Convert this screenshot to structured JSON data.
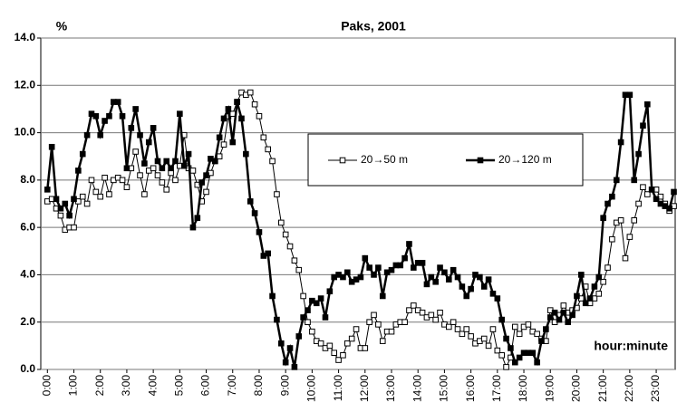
{
  "chart_data": {
    "type": "line",
    "title": "Paks, 2001",
    "y_label": "%",
    "x_label": "hour:minute",
    "x": [
      0,
      10,
      20,
      30,
      40,
      50,
      60,
      70,
      80,
      90,
      100,
      110,
      120,
      130,
      140,
      150,
      160,
      170,
      180,
      190,
      200,
      210,
      220,
      230,
      240,
      250,
      260,
      270,
      280,
      290,
      300,
      310,
      320,
      330,
      340,
      350,
      360,
      370,
      380,
      390,
      400,
      410,
      420,
      430,
      440,
      450,
      460,
      470,
      480,
      490,
      500,
      510,
      520,
      530,
      540,
      550,
      560,
      570,
      580,
      590,
      600,
      610,
      620,
      630,
      640,
      650,
      660,
      670,
      680,
      690,
      700,
      710,
      720,
      730,
      740,
      750,
      760,
      770,
      780,
      790,
      800,
      810,
      820,
      830,
      840,
      850,
      860,
      870,
      880,
      890,
      900,
      910,
      920,
      930,
      940,
      950,
      960,
      970,
      980,
      990,
      1000,
      1010,
      1020,
      1030,
      1040,
      1050,
      1060,
      1070,
      1080,
      1090,
      1100,
      1110,
      1120,
      1130,
      1140,
      1150,
      1160,
      1170,
      1180,
      1190,
      1200,
      1210,
      1220,
      1230,
      1240,
      1250,
      1260,
      1270,
      1280,
      1290,
      1300,
      1310,
      1320,
      1330,
      1340,
      1350,
      1360,
      1370,
      1380,
      1390,
      1400,
      1410,
      1420
    ],
    "series": [
      {
        "name": "20→50 m",
        "color": "#000000",
        "marker": "open",
        "values": [
          7.1,
          7.2,
          6.8,
          6.5,
          5.9,
          6.0,
          6.0,
          7.1,
          7.3,
          7.0,
          8.0,
          7.5,
          7.3,
          8.1,
          7.4,
          8.0,
          8.1,
          8.0,
          7.7,
          8.5,
          9.2,
          8.2,
          7.4,
          8.4,
          8.5,
          8.2,
          7.9,
          7.6,
          8.3,
          8.0,
          8.6,
          9.9,
          8.5,
          8.4,
          7.8,
          7.1,
          7.5,
          8.3,
          8.8,
          9.0,
          9.5,
          10.7,
          10.8,
          11.3,
          11.7,
          11.6,
          11.7,
          11.2,
          10.7,
          9.8,
          9.3,
          8.8,
          7.4,
          6.2,
          5.7,
          5.2,
          4.6,
          4.2,
          3.1,
          2.0,
          1.6,
          1.2,
          1.1,
          0.9,
          1.0,
          0.7,
          0.4,
          0.6,
          1.1,
          1.3,
          1.7,
          0.9,
          0.9,
          2.0,
          2.3,
          1.9,
          1.2,
          1.6,
          1.6,
          1.9,
          2.0,
          2.0,
          2.5,
          2.7,
          2.5,
          2.4,
          2.2,
          2.3,
          2.1,
          2.4,
          1.9,
          1.8,
          2.0,
          1.7,
          1.5,
          1.7,
          1.4,
          1.1,
          1.2,
          1.3,
          1.0,
          1.7,
          0.8,
          0.6,
          0.1,
          0.5,
          1.8,
          1.5,
          1.8,
          1.9,
          1.6,
          1.5,
          1.3,
          1.2,
          2.5,
          2.0,
          2.3,
          2.7,
          2.4,
          2.5,
          2.6,
          3.0,
          3.5,
          2.8,
          3.0,
          3.2,
          3.7,
          4.3,
          5.5,
          6.2,
          6.3,
          4.7,
          5.6,
          6.3,
          7.0,
          7.7,
          7.4,
          7.6,
          7.6,
          7.3,
          7.0,
          6.7,
          6.9
        ]
      },
      {
        "name": "20→120 m",
        "color": "#000000",
        "marker": "filled",
        "values": [
          7.6,
          9.4,
          7.2,
          6.8,
          7.0,
          6.5,
          7.2,
          8.4,
          9.1,
          9.9,
          10.8,
          10.7,
          9.9,
          10.5,
          10.7,
          11.3,
          11.3,
          10.7,
          8.5,
          10.2,
          11.0,
          9.9,
          8.7,
          9.6,
          10.2,
          8.8,
          8.5,
          8.8,
          8.5,
          8.8,
          10.8,
          8.6,
          9.1,
          6.0,
          6.4,
          7.9,
          8.2,
          8.9,
          8.8,
          9.8,
          10.6,
          11.0,
          9.6,
          11.3,
          10.6,
          9.1,
          7.1,
          6.6,
          5.8,
          4.8,
          4.9,
          3.1,
          2.1,
          1.1,
          0.3,
          0.9,
          0.1,
          1.4,
          2.2,
          2.5,
          2.9,
          2.8,
          3.0,
          2.2,
          3.3,
          3.9,
          4.0,
          3.9,
          4.1,
          3.7,
          3.8,
          3.9,
          4.7,
          4.3,
          4.0,
          4.3,
          3.1,
          4.1,
          4.2,
          4.4,
          4.4,
          4.7,
          5.3,
          4.3,
          4.5,
          4.5,
          3.6,
          3.9,
          3.7,
          4.3,
          4.1,
          3.8,
          4.2,
          3.9,
          3.5,
          3.1,
          3.4,
          4.0,
          3.9,
          3.5,
          3.8,
          3.2,
          3.0,
          2.1,
          1.3,
          0.9,
          0.3,
          0.5,
          0.7,
          0.7,
          0.7,
          0.3,
          1.2,
          1.7,
          2.2,
          2.4,
          2.1,
          2.4,
          2.0,
          2.3,
          3.1,
          4.0,
          2.8,
          3.0,
          3.5,
          3.9,
          6.4,
          7.0,
          7.3,
          8.0,
          9.6,
          11.6,
          11.6,
          8.0,
          9.1,
          10.3,
          11.2,
          7.6,
          7.2,
          7.0,
          6.9,
          6.8,
          7.5
        ]
      }
    ],
    "xlim": [
      -15,
      1423
    ],
    "xticks": [
      {
        "value": 0,
        "label": "0:00"
      },
      {
        "value": 60,
        "label": "1:00"
      },
      {
        "value": 120,
        "label": "2:00"
      },
      {
        "value": 180,
        "label": "3:00"
      },
      {
        "value": 240,
        "label": "4:00"
      },
      {
        "value": 300,
        "label": "5:00"
      },
      {
        "value": 360,
        "label": "6:00"
      },
      {
        "value": 420,
        "label": "7:00"
      },
      {
        "value": 480,
        "label": "8:00"
      },
      {
        "value": 540,
        "label": "9:00"
      },
      {
        "value": 600,
        "label": "10:00"
      },
      {
        "value": 660,
        "label": "11:00"
      },
      {
        "value": 720,
        "label": "12:00"
      },
      {
        "value": 780,
        "label": "13:00"
      },
      {
        "value": 840,
        "label": "14:00"
      },
      {
        "value": 900,
        "label": "15:00"
      },
      {
        "value": 960,
        "label": "16:00"
      },
      {
        "value": 1020,
        "label": "17:00"
      },
      {
        "value": 1080,
        "label": "18:00"
      },
      {
        "value": 1140,
        "label": "19:00"
      },
      {
        "value": 1200,
        "label": "20:00"
      },
      {
        "value": 1260,
        "label": "21:00"
      },
      {
        "value": 1320,
        "label": "22:00"
      },
      {
        "value": 1380,
        "label": "23:00"
      }
    ],
    "ylim": [
      0,
      14
    ],
    "yticks": [
      {
        "value": 0,
        "label": "0.0"
      },
      {
        "value": 2,
        "label": "2.0"
      },
      {
        "value": 4,
        "label": "4.0"
      },
      {
        "value": 6,
        "label": "6.0"
      },
      {
        "value": 8,
        "label": "8.0"
      },
      {
        "value": 10,
        "label": "10.0"
      },
      {
        "value": 12,
        "label": "12.0"
      },
      {
        "value": 14,
        "label": "14.0"
      }
    ],
    "grid": true
  }
}
